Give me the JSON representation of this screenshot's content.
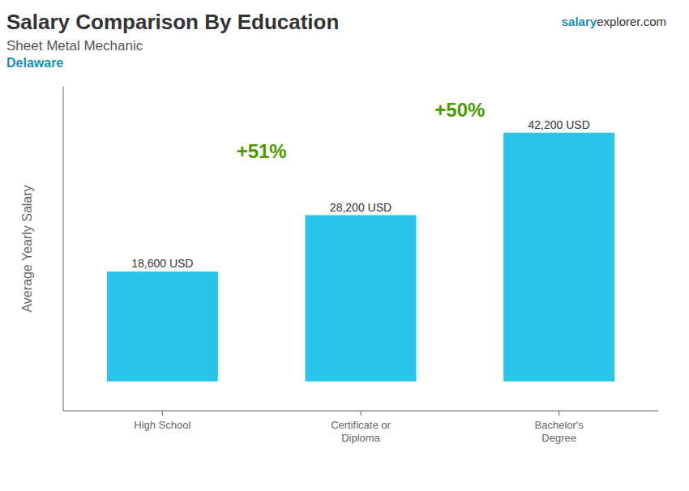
{
  "chart_data": {
    "type": "bar",
    "title": "Salary Comparison By Education",
    "subtitle": "Sheet Metal Mechanic",
    "annotations": [
      {
        "text": "Delaware"
      },
      {
        "text": "salary"
      },
      {
        "text": "explorer.com"
      },
      {
        "text": "+51%",
        "from": "High School",
        "to": "Certificate or\nDiploma"
      },
      {
        "text": "+50%",
        "from": "Certificate or\nDiploma",
        "to": "Bachelor's\nDegree"
      }
    ],
    "y_label": "Average Yearly Salary",
    "categories": [
      "High School",
      "Certificate or\nDiploma",
      "Bachelor's\nDegree"
    ],
    "values": [
      18600,
      28200,
      42200
    ],
    "value_labels": [
      "18,600 USD",
      "28,200 USD",
      "42,200 USD"
    ],
    "data_labels": true,
    "color": "#29c5e8",
    "ylim": [
      -5000,
      50000
    ],
    "tick_labels": "x"
  }
}
